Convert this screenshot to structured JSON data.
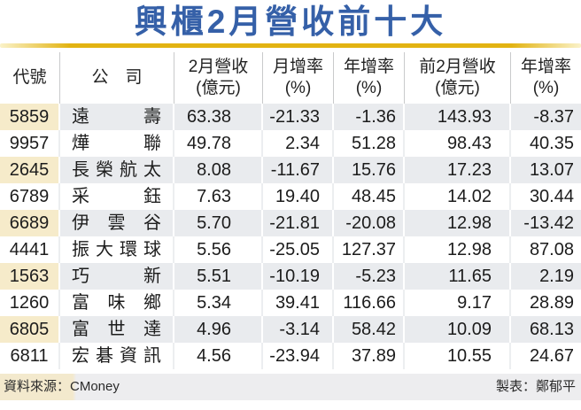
{
  "title": "興櫃2月營收前十大",
  "colors": {
    "title_blue": "#3560a8",
    "gold_line": "#e2b312",
    "code_beige": "#f6ebca",
    "stripe_gray": "#e9ebee",
    "footer_gray": "#ededef"
  },
  "table": {
    "headers": [
      {
        "line1": "代號",
        "line2": ""
      },
      {
        "line1": "公　司",
        "line2": ""
      },
      {
        "line1": "2月營收",
        "line2": "(億元)"
      },
      {
        "line1": "月增率",
        "line2": "(%)"
      },
      {
        "line1": "年增率",
        "line2": "(%)"
      },
      {
        "line1": "前2月營收",
        "line2": "(億元)"
      },
      {
        "line1": "年增率",
        "line2": "(%)"
      }
    ],
    "rows": [
      {
        "code": "5859",
        "company": "遠 壽",
        "feb_rev": "63.38",
        "mom": "-21.33",
        "yoy": "-1.36",
        "cum_rev": "143.93",
        "cum_yoy": "-8.37"
      },
      {
        "code": "9957",
        "company": "燁 聯",
        "feb_rev": "49.78",
        "mom": "2.34",
        "yoy": "51.28",
        "cum_rev": "98.43",
        "cum_yoy": "40.35"
      },
      {
        "code": "2645",
        "company": "長榮航太",
        "feb_rev": "8.08",
        "mom": "-11.67",
        "yoy": "15.76",
        "cum_rev": "17.23",
        "cum_yoy": "13.07"
      },
      {
        "code": "6789",
        "company": "采 鈺",
        "feb_rev": "7.63",
        "mom": "19.40",
        "yoy": "48.45",
        "cum_rev": "14.02",
        "cum_yoy": "30.44"
      },
      {
        "code": "6689",
        "company": "伊 雲 谷",
        "feb_rev": "5.70",
        "mom": "-21.81",
        "yoy": "-20.08",
        "cum_rev": "12.98",
        "cum_yoy": "-13.42"
      },
      {
        "code": "4441",
        "company": "振大環球",
        "feb_rev": "5.56",
        "mom": "-25.05",
        "yoy": "127.37",
        "cum_rev": "12.98",
        "cum_yoy": "87.08"
      },
      {
        "code": "1563",
        "company": "巧 新",
        "feb_rev": "5.51",
        "mom": "-10.19",
        "yoy": "-5.23",
        "cum_rev": "11.65",
        "cum_yoy": "2.19"
      },
      {
        "code": "1260",
        "company": "富 味 鄉",
        "feb_rev": "5.34",
        "mom": "39.41",
        "yoy": "116.66",
        "cum_rev": "9.17",
        "cum_yoy": "28.89"
      },
      {
        "code": "6805",
        "company": "富 世 達",
        "feb_rev": "4.96",
        "mom": "-3.14",
        "yoy": "58.42",
        "cum_rev": "10.09",
        "cum_yoy": "68.13"
      },
      {
        "code": "6811",
        "company": "宏碁資訊",
        "feb_rev": "4.56",
        "mom": "-23.94",
        "yoy": "37.89",
        "cum_rev": "10.55",
        "cum_yoy": "24.67"
      }
    ]
  },
  "footer": {
    "source": "資料來源：CMoney",
    "credit": "製表：鄭郁平"
  },
  "chart_data": {
    "type": "table",
    "title": "興櫃2月營收前十大",
    "columns": [
      "代號",
      "公司",
      "2月營收(億元)",
      "月增率(%)",
      "年增率(%)",
      "前2月營收(億元)",
      "年增率(%)"
    ],
    "rows": [
      [
        "5859",
        "遠壽",
        63.38,
        -21.33,
        -1.36,
        143.93,
        -8.37
      ],
      [
        "9957",
        "燁聯",
        49.78,
        2.34,
        51.28,
        98.43,
        40.35
      ],
      [
        "2645",
        "長榮航太",
        8.08,
        -11.67,
        15.76,
        17.23,
        13.07
      ],
      [
        "6789",
        "采鈺",
        7.63,
        19.4,
        48.45,
        14.02,
        30.44
      ],
      [
        "6689",
        "伊雲谷",
        5.7,
        -21.81,
        -20.08,
        12.98,
        -13.42
      ],
      [
        "4441",
        "振大環球",
        5.56,
        -25.05,
        127.37,
        12.98,
        87.08
      ],
      [
        "1563",
        "巧新",
        5.51,
        -10.19,
        -5.23,
        11.65,
        2.19
      ],
      [
        "1260",
        "富味鄉",
        5.34,
        39.41,
        116.66,
        9.17,
        28.89
      ],
      [
        "6805",
        "富世達",
        4.96,
        -3.14,
        58.42,
        10.09,
        68.13
      ],
      [
        "6811",
        "宏碁資訊",
        4.56,
        -23.94,
        37.89,
        10.55,
        24.67
      ]
    ],
    "source": "CMoney",
    "prepared_by": "鄭郁平"
  }
}
